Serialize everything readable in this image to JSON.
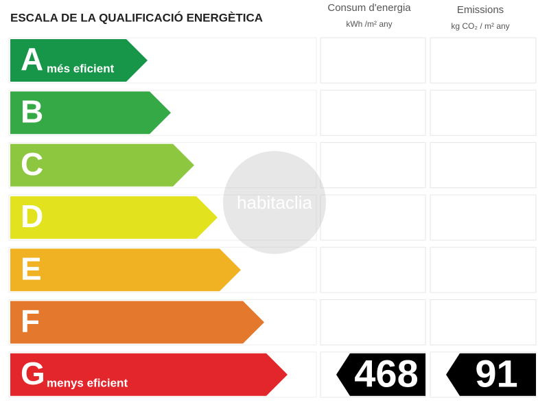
{
  "title": "ESCALA DE LA QUALIFICACIÓ ENERGÈTICA",
  "columns": [
    {
      "title": "Consum d'energia",
      "unit": "kWh /m² any"
    },
    {
      "title": "Emissions",
      "unit": "kg CO₂ / m² any"
    }
  ],
  "rows": [
    {
      "letter": "A",
      "note": "més eficient",
      "color": "#17964a"
    },
    {
      "letter": "B",
      "color": "#35a945"
    },
    {
      "letter": "C",
      "color": "#8dc63f"
    },
    {
      "letter": "D",
      "color": "#e3e21e"
    },
    {
      "letter": "E",
      "color": "#f0b223"
    },
    {
      "letter": "F",
      "color": "#e4782c"
    },
    {
      "letter": "G",
      "note": "menys eficient",
      "color": "#e2262c"
    }
  ],
  "result": {
    "row": 6,
    "values": [
      468,
      91
    ]
  },
  "watermark": "habitaclia"
}
